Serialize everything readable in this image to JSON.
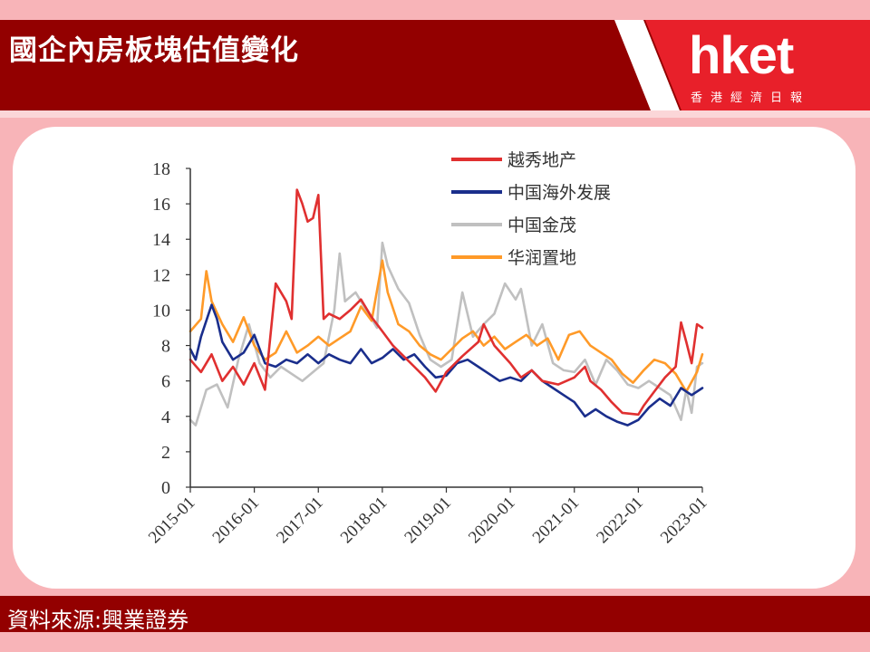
{
  "header": {
    "title": "國企內房板塊估值變化",
    "brand_name": "hket",
    "brand_sub": "香港經濟日報"
  },
  "footer": {
    "source": "資料來源:興業證券"
  },
  "colors": {
    "brand_red": "#930000",
    "page_pink": "#f8b4b8"
  },
  "chart_data": {
    "type": "line",
    "title": "",
    "xlabel": "",
    "ylabel": "",
    "ylim": [
      0,
      18
    ],
    "xlim": [
      "2015-01",
      "2023-01"
    ],
    "yticks": [
      "0",
      "2",
      "4",
      "6",
      "8",
      "10",
      "12",
      "14",
      "16",
      "18"
    ],
    "xticks": [
      "2015-01",
      "2016-01",
      "2017-01",
      "2018-01",
      "2019-01",
      "2020-01",
      "2021-01",
      "2022-01",
      "2023-01"
    ],
    "legend_position": "top-right",
    "series": [
      {
        "name": "越秀地产",
        "color": "#e03030",
        "data": [
          [
            "2015-01",
            7.2
          ],
          [
            "2015-03",
            6.5
          ],
          [
            "2015-05",
            7.5
          ],
          [
            "2015-07",
            6.0
          ],
          [
            "2015-09",
            6.8
          ],
          [
            "2015-11",
            5.8
          ],
          [
            "2016-01",
            7.0
          ],
          [
            "2016-03",
            5.5
          ],
          [
            "2016-05",
            11.5
          ],
          [
            "2016-07",
            10.5
          ],
          [
            "2016-08",
            9.5
          ],
          [
            "2016-09",
            16.8
          ],
          [
            "2016-10",
            16.0
          ],
          [
            "2016-11",
            15.0
          ],
          [
            "2016-12",
            15.2
          ],
          [
            "2017-01",
            16.5
          ],
          [
            "2017-02",
            9.5
          ],
          [
            "2017-03",
            9.8
          ],
          [
            "2017-05",
            9.5
          ],
          [
            "2017-07",
            10.0
          ],
          [
            "2017-09",
            10.6
          ],
          [
            "2017-11",
            9.6
          ],
          [
            "2018-01",
            8.8
          ],
          [
            "2018-03",
            8.0
          ],
          [
            "2018-05",
            7.4
          ],
          [
            "2018-07",
            6.8
          ],
          [
            "2018-09",
            6.2
          ],
          [
            "2018-11",
            5.4
          ],
          [
            "2019-01",
            6.5
          ],
          [
            "2019-04",
            7.4
          ],
          [
            "2019-07",
            8.2
          ],
          [
            "2019-08",
            9.2
          ],
          [
            "2019-10",
            8.0
          ],
          [
            "2020-01",
            7.0
          ],
          [
            "2020-03",
            6.2
          ],
          [
            "2020-05",
            6.6
          ],
          [
            "2020-07",
            6.0
          ],
          [
            "2020-10",
            5.8
          ],
          [
            "2021-01",
            6.2
          ],
          [
            "2021-03",
            6.8
          ],
          [
            "2021-04",
            6.0
          ],
          [
            "2021-06",
            5.5
          ],
          [
            "2021-08",
            4.8
          ],
          [
            "2021-10",
            4.2
          ],
          [
            "2022-01",
            4.1
          ],
          [
            "2022-02",
            4.6
          ],
          [
            "2022-04",
            5.4
          ],
          [
            "2022-06",
            6.2
          ],
          [
            "2022-08",
            6.8
          ],
          [
            "2022-09",
            9.3
          ],
          [
            "2022-10",
            8.2
          ],
          [
            "2022-11",
            7.0
          ],
          [
            "2022-12",
            9.2
          ],
          [
            "2023-01",
            9.0
          ]
        ]
      },
      {
        "name": "中国海外发展",
        "color": "#1a2e8c",
        "data": [
          [
            "2015-01",
            7.8
          ],
          [
            "2015-02",
            7.2
          ],
          [
            "2015-03",
            8.5
          ],
          [
            "2015-05",
            10.3
          ],
          [
            "2015-06",
            9.5
          ],
          [
            "2015-07",
            8.2
          ],
          [
            "2015-09",
            7.2
          ],
          [
            "2015-11",
            7.6
          ],
          [
            "2016-01",
            8.6
          ],
          [
            "2016-03",
            7.0
          ],
          [
            "2016-05",
            6.8
          ],
          [
            "2016-07",
            7.2
          ],
          [
            "2016-09",
            7.0
          ],
          [
            "2016-11",
            7.5
          ],
          [
            "2017-01",
            7.0
          ],
          [
            "2017-03",
            7.5
          ],
          [
            "2017-05",
            7.2
          ],
          [
            "2017-07",
            7.0
          ],
          [
            "2017-09",
            7.8
          ],
          [
            "2017-11",
            7.0
          ],
          [
            "2018-01",
            7.3
          ],
          [
            "2018-03",
            7.8
          ],
          [
            "2018-05",
            7.2
          ],
          [
            "2018-07",
            7.5
          ],
          [
            "2018-09",
            6.8
          ],
          [
            "2018-11",
            6.2
          ],
          [
            "2019-01",
            6.3
          ],
          [
            "2019-03",
            7.0
          ],
          [
            "2019-05",
            7.2
          ],
          [
            "2019-07",
            6.8
          ],
          [
            "2019-09",
            6.4
          ],
          [
            "2019-11",
            6.0
          ],
          [
            "2020-01",
            6.2
          ],
          [
            "2020-03",
            6.0
          ],
          [
            "2020-05",
            6.6
          ],
          [
            "2020-07",
            6.0
          ],
          [
            "2020-09",
            5.6
          ],
          [
            "2020-11",
            5.2
          ],
          [
            "2021-01",
            4.8
          ],
          [
            "2021-03",
            4.0
          ],
          [
            "2021-05",
            4.4
          ],
          [
            "2021-07",
            4.0
          ],
          [
            "2021-09",
            3.7
          ],
          [
            "2021-11",
            3.5
          ],
          [
            "2022-01",
            3.8
          ],
          [
            "2022-03",
            4.5
          ],
          [
            "2022-05",
            5.0
          ],
          [
            "2022-07",
            4.6
          ],
          [
            "2022-09",
            5.6
          ],
          [
            "2022-11",
            5.2
          ],
          [
            "2023-01",
            5.6
          ]
        ]
      },
      {
        "name": "中国金茂",
        "color": "#c0c0c0",
        "data": [
          [
            "2015-01",
            3.8
          ],
          [
            "2015-02",
            3.5
          ],
          [
            "2015-04",
            5.5
          ],
          [
            "2015-06",
            5.8
          ],
          [
            "2015-08",
            4.5
          ],
          [
            "2015-10",
            7.2
          ],
          [
            "2015-12",
            9.2
          ],
          [
            "2016-02",
            7.0
          ],
          [
            "2016-04",
            6.2
          ],
          [
            "2016-06",
            6.8
          ],
          [
            "2016-08",
            6.4
          ],
          [
            "2016-10",
            6.0
          ],
          [
            "2016-12",
            6.5
          ],
          [
            "2017-02",
            7.0
          ],
          [
            "2017-04",
            10.0
          ],
          [
            "2017-05",
            13.2
          ],
          [
            "2017-06",
            10.5
          ],
          [
            "2017-08",
            11.0
          ],
          [
            "2017-10",
            10.0
          ],
          [
            "2017-12",
            9.0
          ],
          [
            "2018-01",
            13.8
          ],
          [
            "2018-02",
            12.5
          ],
          [
            "2018-04",
            11.2
          ],
          [
            "2018-06",
            10.4
          ],
          [
            "2018-08",
            8.6
          ],
          [
            "2018-10",
            7.2
          ],
          [
            "2018-12",
            6.8
          ],
          [
            "2019-02",
            7.2
          ],
          [
            "2019-04",
            11.0
          ],
          [
            "2019-06",
            8.5
          ],
          [
            "2019-08",
            9.2
          ],
          [
            "2019-10",
            9.8
          ],
          [
            "2019-12",
            11.5
          ],
          [
            "2020-02",
            10.6
          ],
          [
            "2020-03",
            11.2
          ],
          [
            "2020-05",
            8.0
          ],
          [
            "2020-07",
            9.2
          ],
          [
            "2020-09",
            7.0
          ],
          [
            "2020-11",
            6.6
          ],
          [
            "2021-01",
            6.5
          ],
          [
            "2021-03",
            7.2
          ],
          [
            "2021-05",
            5.8
          ],
          [
            "2021-07",
            7.2
          ],
          [
            "2021-09",
            6.6
          ],
          [
            "2021-11",
            5.8
          ],
          [
            "2022-01",
            5.6
          ],
          [
            "2022-03",
            6.0
          ],
          [
            "2022-05",
            5.6
          ],
          [
            "2022-07",
            5.2
          ],
          [
            "2022-08",
            4.5
          ],
          [
            "2022-09",
            3.8
          ],
          [
            "2022-10",
            5.5
          ],
          [
            "2022-11",
            4.2
          ],
          [
            "2022-12",
            6.8
          ],
          [
            "2023-01",
            7.0
          ]
        ]
      },
      {
        "name": "华润置地",
        "color": "#ff9a28",
        "data": [
          [
            "2015-01",
            8.8
          ],
          [
            "2015-03",
            9.5
          ],
          [
            "2015-04",
            12.2
          ],
          [
            "2015-05",
            10.5
          ],
          [
            "2015-07",
            9.2
          ],
          [
            "2015-09",
            8.2
          ],
          [
            "2015-11",
            9.6
          ],
          [
            "2016-01",
            8.0
          ],
          [
            "2016-03",
            7.2
          ],
          [
            "2016-05",
            7.6
          ],
          [
            "2016-07",
            8.8
          ],
          [
            "2016-09",
            7.6
          ],
          [
            "2016-11",
            8.0
          ],
          [
            "2017-01",
            8.5
          ],
          [
            "2017-03",
            8.0
          ],
          [
            "2017-05",
            8.4
          ],
          [
            "2017-07",
            8.8
          ],
          [
            "2017-09",
            10.2
          ],
          [
            "2017-11",
            9.4
          ],
          [
            "2018-01",
            12.8
          ],
          [
            "2018-02",
            11.0
          ],
          [
            "2018-04",
            9.2
          ],
          [
            "2018-06",
            8.8
          ],
          [
            "2018-08",
            8.0
          ],
          [
            "2018-10",
            7.5
          ],
          [
            "2018-12",
            7.2
          ],
          [
            "2019-02",
            7.8
          ],
          [
            "2019-04",
            8.4
          ],
          [
            "2019-06",
            8.8
          ],
          [
            "2019-08",
            8.0
          ],
          [
            "2019-10",
            8.5
          ],
          [
            "2019-12",
            7.8
          ],
          [
            "2020-02",
            8.2
          ],
          [
            "2020-04",
            8.6
          ],
          [
            "2020-06",
            8.0
          ],
          [
            "2020-08",
            8.4
          ],
          [
            "2020-10",
            7.2
          ],
          [
            "2020-12",
            8.6
          ],
          [
            "2021-02",
            8.8
          ],
          [
            "2021-04",
            8.0
          ],
          [
            "2021-06",
            7.6
          ],
          [
            "2021-08",
            7.2
          ],
          [
            "2021-10",
            6.4
          ],
          [
            "2021-12",
            5.9
          ],
          [
            "2022-02",
            6.6
          ],
          [
            "2022-04",
            7.2
          ],
          [
            "2022-06",
            7.0
          ],
          [
            "2022-08",
            6.4
          ],
          [
            "2022-10",
            5.4
          ],
          [
            "2022-12",
            6.5
          ],
          [
            "2023-01",
            7.5
          ]
        ]
      }
    ]
  }
}
